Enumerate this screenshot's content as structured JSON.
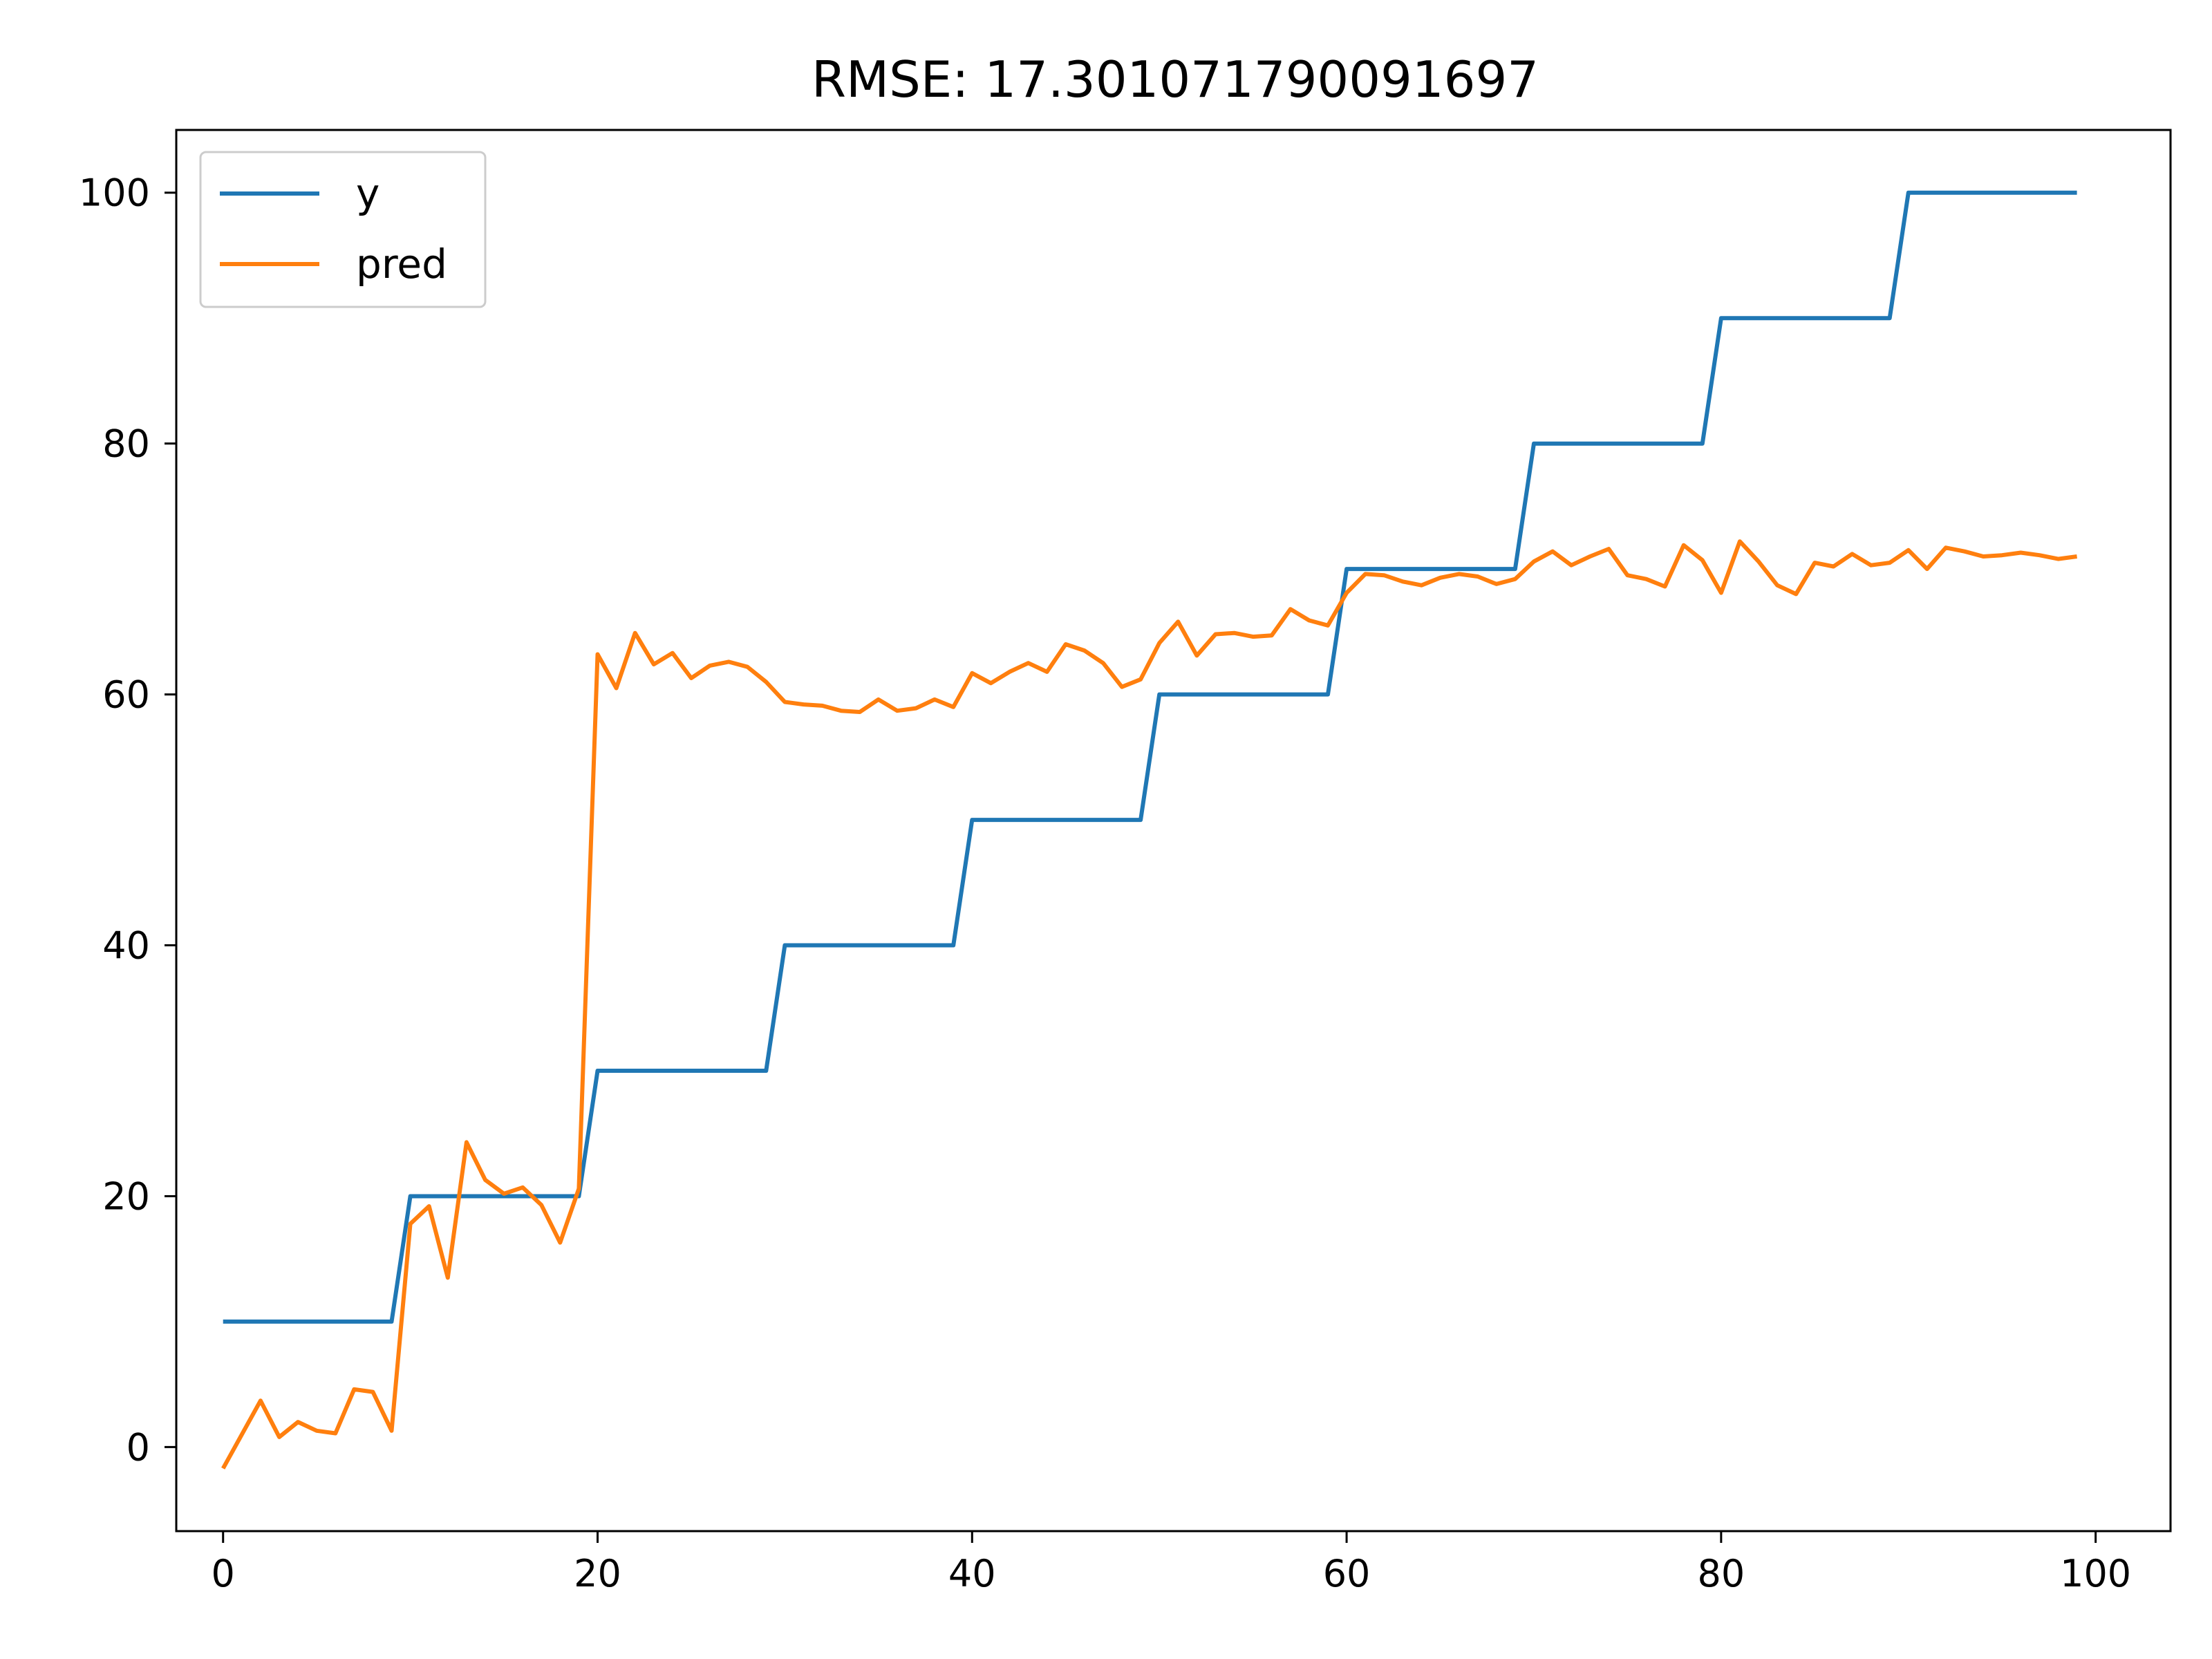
{
  "chart_data": {
    "type": "line",
    "title": "RMSE: 17.301071790091697",
    "xlabel": "",
    "ylabel": "",
    "xlim": [
      -2.5,
      104.0
    ],
    "ylim": [
      -6.7,
      105.0
    ],
    "xticks": [
      0,
      20,
      40,
      60,
      80,
      100
    ],
    "yticks": [
      0,
      20,
      40,
      60,
      80,
      100
    ],
    "grid": false,
    "legend_position": "upper-left",
    "x": [
      0,
      1,
      2,
      3,
      4,
      5,
      6,
      7,
      8,
      9,
      10,
      11,
      12,
      13,
      14,
      15,
      16,
      17,
      18,
      19,
      20,
      21,
      22,
      23,
      24,
      25,
      26,
      27,
      28,
      29,
      30,
      31,
      32,
      33,
      34,
      35,
      36,
      37,
      38,
      39,
      40,
      41,
      42,
      43,
      44,
      45,
      46,
      47,
      48,
      49,
      50,
      51,
      52,
      53,
      54,
      55,
      56,
      57,
      58,
      59,
      60,
      61,
      62,
      63,
      64,
      65,
      66,
      67,
      68,
      69,
      70,
      71,
      72,
      73,
      74,
      75,
      76,
      77,
      78,
      79,
      80,
      81,
      82,
      83,
      84,
      85,
      86,
      87,
      88,
      89,
      90,
      91,
      92,
      93,
      94,
      95,
      96,
      97,
      98,
      99
    ],
    "series": [
      {
        "name": "y",
        "color": "#1f77b4",
        "values": [
          10,
          10,
          10,
          10,
          10,
          10,
          10,
          10,
          10,
          10,
          20,
          20,
          20,
          20,
          20,
          20,
          20,
          20,
          20,
          20,
          30,
          30,
          30,
          30,
          30,
          30,
          30,
          30,
          30,
          30,
          40,
          40,
          40,
          40,
          40,
          40,
          40,
          40,
          40,
          40,
          50,
          50,
          50,
          50,
          50,
          50,
          50,
          50,
          50,
          50,
          60,
          60,
          60,
          60,
          60,
          60,
          60,
          60,
          60,
          60,
          70,
          70,
          70,
          70,
          70,
          70,
          70,
          70,
          70,
          70,
          80,
          80,
          80,
          80,
          80,
          80,
          80,
          80,
          80,
          80,
          90,
          90,
          90,
          90,
          90,
          90,
          90,
          90,
          90,
          90,
          100,
          100,
          100,
          100,
          100,
          100,
          100,
          100,
          100,
          100
        ]
      },
      {
        "name": "pred",
        "color": "#ff7f0e",
        "values": [
          -1.7,
          1.0,
          3.7,
          0.8,
          2.0,
          1.3,
          1.1,
          4.6,
          4.4,
          1.3,
          17.8,
          19.2,
          13.5,
          24.3,
          21.3,
          20.2,
          20.7,
          19.3,
          16.3,
          20.6,
          63.2,
          60.5,
          64.9,
          62.4,
          63.3,
          61.3,
          62.3,
          62.6,
          62.2,
          61.0,
          59.4,
          59.2,
          59.1,
          58.7,
          58.6,
          59.6,
          58.7,
          58.9,
          59.6,
          59.0,
          61.7,
          60.9,
          61.8,
          62.5,
          61.8,
          64.0,
          63.5,
          62.5,
          60.6,
          61.2,
          64.1,
          65.8,
          63.1,
          64.8,
          64.9,
          64.6,
          64.7,
          66.8,
          65.9,
          65.5,
          68.1,
          69.6,
          69.5,
          69.0,
          68.7,
          69.3,
          69.6,
          69.4,
          68.8,
          69.2,
          70.6,
          71.4,
          70.3,
          71.0,
          71.6,
          69.5,
          69.2,
          68.6,
          71.9,
          70.7,
          68.1,
          72.2,
          70.6,
          68.7,
          68.0,
          70.5,
          70.2,
          71.2,
          70.3,
          70.5,
          71.5,
          70.0,
          71.7,
          71.4,
          71.0,
          71.1,
          71.3,
          71.1,
          70.8,
          71.0
        ]
      }
    ]
  }
}
